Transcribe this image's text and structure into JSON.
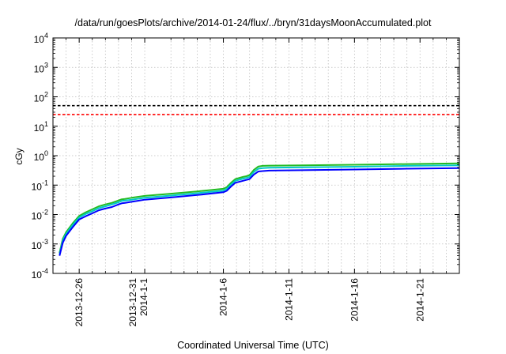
{
  "title": "/data/run/goesPlots/archive/2014-01-24/flux/../bryn/31daysMoonAccumulated.plot",
  "chart_data": {
    "type": "line",
    "title": "/data/run/goesPlots/archive/2014-01-24/flux/../bryn/31daysMoonAccumulated.plot",
    "xlabel": "Coordinated Universal Time (UTC)",
    "ylabel": "cGy",
    "yscale": "log",
    "ylim": [
      0.0001,
      10000
    ],
    "xlim": [
      "2013-12-24",
      "2014-01-24"
    ],
    "grid": true,
    "yticks": [
      {
        "value": 0.0001,
        "mantissa": "10",
        "exp": "-4"
      },
      {
        "value": 0.001,
        "mantissa": "10",
        "exp": "-3"
      },
      {
        "value": 0.01,
        "mantissa": "10",
        "exp": "-2"
      },
      {
        "value": 0.1,
        "mantissa": "10",
        "exp": "-1"
      },
      {
        "value": 1,
        "mantissa": "10",
        "exp": "0"
      },
      {
        "value": 10,
        "mantissa": "10",
        "exp": "1"
      },
      {
        "value": 100,
        "mantissa": "10",
        "exp": "2"
      },
      {
        "value": 1000,
        "mantissa": "10",
        "exp": "3"
      },
      {
        "value": 10000,
        "mantissa": "10",
        "exp": "4"
      }
    ],
    "xticks": [
      {
        "date": "2013-12-26",
        "lines": [
          "2013-12-26"
        ]
      },
      {
        "date": "2013-12-31",
        "lines": [
          "2013-12-31",
          "2014-1-1"
        ]
      },
      {
        "date": "2014-01-06",
        "lines": [
          "2014-1-6"
        ]
      },
      {
        "date": "2014-01-11",
        "lines": [
          "2014-1-11"
        ]
      },
      {
        "date": "2014-01-16",
        "lines": [
          "2014-1-16"
        ]
      },
      {
        "date": "2014-01-21",
        "lines": [
          "2014-1-21"
        ]
      }
    ],
    "minor_x_dates": [
      "2013-12-25",
      "2013-12-27",
      "2013-12-28",
      "2013-12-29",
      "2013-12-30",
      "2014-01-02",
      "2014-01-03",
      "2014-01-04",
      "2014-01-05",
      "2014-01-07",
      "2014-01-08",
      "2014-01-09",
      "2014-01-10",
      "2014-01-12",
      "2014-01-13",
      "2014-01-14",
      "2014-01-15",
      "2014-01-17",
      "2014-01-18",
      "2014-01-19",
      "2014-01-20",
      "2014-01-22",
      "2014-01-23"
    ],
    "reference_lines": [
      {
        "value": 50,
        "color": "#000000",
        "style": "dashed"
      },
      {
        "value": 25,
        "color": "#ff0000",
        "style": "dashed"
      }
    ],
    "series": [
      {
        "color": "#22bb22",
        "x": [
          "2013-12-24 12:00",
          "2013-12-24 18:00",
          "2013-12-25 00:00",
          "2013-12-25 12:00",
          "2013-12-26 00:00",
          "2013-12-26 12:00",
          "2013-12-27 00:00",
          "2013-12-27 12:00",
          "2013-12-28 00:00",
          "2013-12-28 12:00",
          "2013-12-29 00:00",
          "2013-12-29 06:00",
          "2013-12-29 12:00",
          "2013-12-30 00:00",
          "2013-12-31 00:00",
          "2014-01-02 00:00",
          "2014-01-04 00:00",
          "2014-01-06 00:00",
          "2014-01-06 06:00",
          "2014-01-06 14:00",
          "2014-01-06 22:00",
          "2014-01-07 12:00",
          "2014-01-07 18:00",
          "2014-01-08 00:00",
          "2014-01-08 08:00",
          "2014-01-08 16:00",
          "2014-01-09 00:00",
          "2014-01-09 12:00",
          "2014-01-12 00:00",
          "2014-01-16 00:00",
          "2014-01-20 00:00",
          "2014-01-24 00:00"
        ],
        "y": [
          0.0005,
          0.0015,
          0.0025,
          0.005,
          0.009,
          0.012,
          0.015,
          0.019,
          0.022,
          0.025,
          0.03,
          0.033,
          0.034,
          0.037,
          0.043,
          0.051,
          0.061,
          0.075,
          0.085,
          0.12,
          0.16,
          0.19,
          0.2,
          0.22,
          0.33,
          0.43,
          0.45,
          0.46,
          0.47,
          0.49,
          0.52,
          0.55
        ]
      },
      {
        "color": "#00c8c8",
        "x": [
          "2013-12-24 12:00",
          "2013-12-24 18:00",
          "2013-12-25 00:00",
          "2013-12-25 12:00",
          "2013-12-26 00:00",
          "2013-12-26 12:00",
          "2013-12-27 00:00",
          "2013-12-27 12:00",
          "2013-12-28 00:00",
          "2013-12-28 12:00",
          "2013-12-29 00:00",
          "2013-12-29 06:00",
          "2013-12-29 12:00",
          "2013-12-30 00:00",
          "2013-12-31 00:00",
          "2014-01-02 00:00",
          "2014-01-04 00:00",
          "2014-01-06 00:00",
          "2014-01-06 06:00",
          "2014-01-06 14:00",
          "2014-01-06 22:00",
          "2014-01-07 12:00",
          "2014-01-07 18:00",
          "2014-01-08 00:00",
          "2014-01-08 08:00",
          "2014-01-08 16:00",
          "2014-01-09 00:00",
          "2014-01-09 12:00",
          "2014-01-12 00:00",
          "2014-01-16 00:00",
          "2014-01-20 00:00",
          "2014-01-24 00:00"
        ],
        "y": [
          0.00045,
          0.0013,
          0.0022,
          0.0044,
          0.008,
          0.0105,
          0.013,
          0.0165,
          0.019,
          0.022,
          0.026,
          0.029,
          0.03,
          0.032,
          0.037,
          0.044,
          0.053,
          0.065,
          0.074,
          0.105,
          0.14,
          0.165,
          0.175,
          0.19,
          0.28,
          0.36,
          0.38,
          0.39,
          0.4,
          0.42,
          0.45,
          0.47
        ]
      },
      {
        "color": "#0000ff",
        "x": [
          "2013-12-24 12:00",
          "2013-12-24 18:00",
          "2013-12-25 00:00",
          "2013-12-25 12:00",
          "2013-12-26 00:00",
          "2013-12-26 12:00",
          "2013-12-27 00:00",
          "2013-12-27 12:00",
          "2013-12-28 00:00",
          "2013-12-28 12:00",
          "2013-12-29 00:00",
          "2013-12-29 06:00",
          "2013-12-29 12:00",
          "2013-12-30 00:00",
          "2013-12-31 00:00",
          "2014-01-02 00:00",
          "2014-01-04 00:00",
          "2014-01-06 00:00",
          "2014-01-06 06:00",
          "2014-01-06 14:00",
          "2014-01-06 22:00",
          "2014-01-07 12:00",
          "2014-01-07 18:00",
          "2014-01-08 00:00",
          "2014-01-08 08:00",
          "2014-01-08 16:00",
          "2014-01-09 00:00",
          "2014-01-09 12:00",
          "2014-01-12 00:00",
          "2014-01-16 00:00",
          "2014-01-20 00:00",
          "2014-01-24 00:00"
        ],
        "y": [
          0.0004,
          0.0011,
          0.0019,
          0.0037,
          0.0068,
          0.0088,
          0.011,
          0.014,
          0.016,
          0.018,
          0.022,
          0.024,
          0.025,
          0.027,
          0.032,
          0.038,
          0.046,
          0.057,
          0.064,
          0.09,
          0.12,
          0.14,
          0.15,
          0.16,
          0.23,
          0.29,
          0.3,
          0.31,
          0.32,
          0.34,
          0.36,
          0.38
        ]
      }
    ]
  }
}
